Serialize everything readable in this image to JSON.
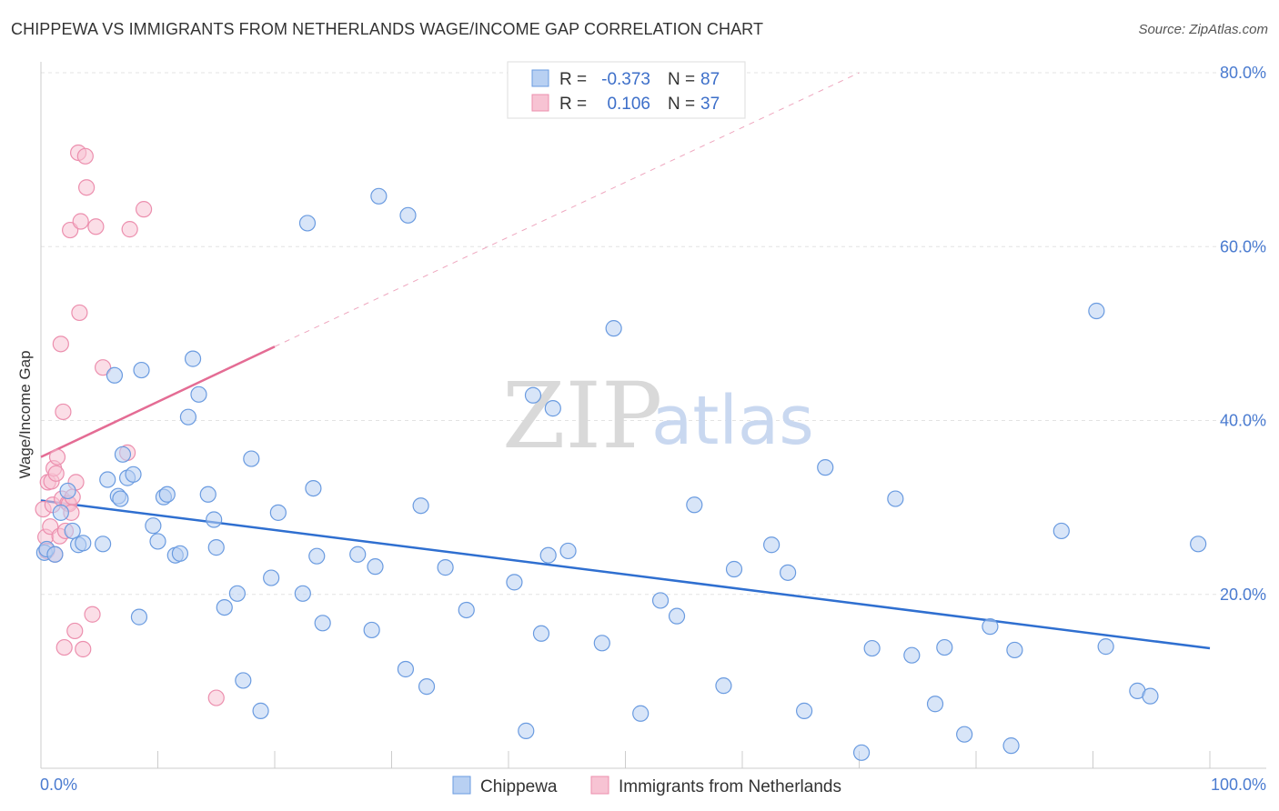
{
  "header": {
    "title": "CHIPPEWA VS IMMIGRANTS FROM NETHERLANDS WAGE/INCOME GAP CORRELATION CHART",
    "source": "Source: ZipAtlas.com"
  },
  "watermark": {
    "zip": "ZIP",
    "atlas": "atlas"
  },
  "legend_top": {
    "rows": [
      {
        "r_label": "R =",
        "r_value": "-0.373",
        "n_label": "N =",
        "n_value": "87"
      },
      {
        "r_label": "R =",
        "r_value": "0.106",
        "n_label": "N =",
        "n_value": "37"
      }
    ]
  },
  "legend_bottom": {
    "items": [
      "Chippewa",
      "Immigrants from Netherlands"
    ]
  },
  "colors": {
    "blue_fill": "#b8d0f2",
    "blue_stroke": "#6a9be0",
    "blue_line": "#2f6fd0",
    "pink_fill": "#f7c3d3",
    "pink_stroke": "#ec8fae",
    "pink_line": "#e46c94",
    "grid": "#e3e3e3",
    "axis": "#cccccc",
    "tick_text": "#4a7bd0"
  },
  "chart_data": {
    "type": "scatter",
    "title": "CHIPPEWA VS IMMIGRANTS FROM NETHERLANDS WAGE/INCOME GAP CORRELATION CHART",
    "xlabel": "",
    "ylabel": "Wage/Income Gap",
    "xlim": [
      0,
      100
    ],
    "ylim": [
      0,
      80
    ],
    "x_tick_labels": [
      "0.0%",
      "100.0%"
    ],
    "y_ticks": [
      20,
      40,
      60,
      80
    ],
    "y_tick_labels": [
      "20.0%",
      "40.0%",
      "60.0%",
      "80.0%"
    ],
    "grid": true,
    "legend_placement": "top-center",
    "series": [
      {
        "name": "Chippewa",
        "r": -0.373,
        "n": 87,
        "trend": {
          "x": [
            0,
            100
          ],
          "y": [
            30.8,
            13.8
          ],
          "extended": false
        },
        "points": [
          [
            0.3,
            24.8
          ],
          [
            0.5,
            25.2
          ],
          [
            1.2,
            24.6
          ],
          [
            1.7,
            29.4
          ],
          [
            2.3,
            31.9
          ],
          [
            2.7,
            27.3
          ],
          [
            3.2,
            25.7
          ],
          [
            3.6,
            25.9
          ],
          [
            5.3,
            25.8
          ],
          [
            5.7,
            33.2
          ],
          [
            6.3,
            45.2
          ],
          [
            6.6,
            31.3
          ],
          [
            6.8,
            31.0
          ],
          [
            7.0,
            36.1
          ],
          [
            7.4,
            33.4
          ],
          [
            7.9,
            33.8
          ],
          [
            8.4,
            17.4
          ],
          [
            8.6,
            45.8
          ],
          [
            9.6,
            27.9
          ],
          [
            10.0,
            26.1
          ],
          [
            10.5,
            31.2
          ],
          [
            10.8,
            31.5
          ],
          [
            11.5,
            24.5
          ],
          [
            11.9,
            24.7
          ],
          [
            12.6,
            40.4
          ],
          [
            13.0,
            47.1
          ],
          [
            13.5,
            43.0
          ],
          [
            14.3,
            31.5
          ],
          [
            14.8,
            28.6
          ],
          [
            15.0,
            25.4
          ],
          [
            15.7,
            18.5
          ],
          [
            16.8,
            20.1
          ],
          [
            17.3,
            10.1
          ],
          [
            18.0,
            35.6
          ],
          [
            18.8,
            6.6
          ],
          [
            19.7,
            21.9
          ],
          [
            20.3,
            29.4
          ],
          [
            22.4,
            20.1
          ],
          [
            22.8,
            62.7
          ],
          [
            23.3,
            32.2
          ],
          [
            23.6,
            24.4
          ],
          [
            24.1,
            16.7
          ],
          [
            27.1,
            24.6
          ],
          [
            28.3,
            15.9
          ],
          [
            28.6,
            23.2
          ],
          [
            28.9,
            65.8
          ],
          [
            31.2,
            11.4
          ],
          [
            31.4,
            63.6
          ],
          [
            32.5,
            30.2
          ],
          [
            33.0,
            9.4
          ],
          [
            34.6,
            23.1
          ],
          [
            36.4,
            18.2
          ],
          [
            40.5,
            21.4
          ],
          [
            41.5,
            4.3
          ],
          [
            42.1,
            42.9
          ],
          [
            42.8,
            15.5
          ],
          [
            43.4,
            24.5
          ],
          [
            43.8,
            41.4
          ],
          [
            45.1,
            25.0
          ],
          [
            48.0,
            14.4
          ],
          [
            49.0,
            50.6
          ],
          [
            51.3,
            6.3
          ],
          [
            53.0,
            19.3
          ],
          [
            54.4,
            17.5
          ],
          [
            55.9,
            30.3
          ],
          [
            58.4,
            9.5
          ],
          [
            59.3,
            22.9
          ],
          [
            62.5,
            25.7
          ],
          [
            63.9,
            22.5
          ],
          [
            65.3,
            6.6
          ],
          [
            67.1,
            34.6
          ],
          [
            70.2,
            1.8
          ],
          [
            71.1,
            13.8
          ],
          [
            73.1,
            31.0
          ],
          [
            74.5,
            13.0
          ],
          [
            76.5,
            7.4
          ],
          [
            77.3,
            13.9
          ],
          [
            79.0,
            3.9
          ],
          [
            81.2,
            16.3
          ],
          [
            83.0,
            2.6
          ],
          [
            83.3,
            13.6
          ],
          [
            87.3,
            27.3
          ],
          [
            90.3,
            52.6
          ],
          [
            91.1,
            14.0
          ],
          [
            93.8,
            8.9
          ],
          [
            94.9,
            8.3
          ],
          [
            99.0,
            25.8
          ]
        ]
      },
      {
        "name": "Immigrants from Netherlands",
        "r": 0.106,
        "n": 37,
        "trend": {
          "x": [
            0,
            20
          ],
          "y": [
            35.8,
            48.5
          ],
          "extended_to": [
            70,
            80
          ]
        },
        "points": [
          [
            0.2,
            29.8
          ],
          [
            0.4,
            26.6
          ],
          [
            0.5,
            25.0
          ],
          [
            0.6,
            32.9
          ],
          [
            0.8,
            27.8
          ],
          [
            0.9,
            33.0
          ],
          [
            1.0,
            30.3
          ],
          [
            1.1,
            34.5
          ],
          [
            1.2,
            24.6
          ],
          [
            1.3,
            33.9
          ],
          [
            1.4,
            35.8
          ],
          [
            1.6,
            26.7
          ],
          [
            1.7,
            48.8
          ],
          [
            1.8,
            31.0
          ],
          [
            1.9,
            41.0
          ],
          [
            2.0,
            13.9
          ],
          [
            2.1,
            27.3
          ],
          [
            2.3,
            30.5
          ],
          [
            2.4,
            30.4
          ],
          [
            2.5,
            61.9
          ],
          [
            2.6,
            29.4
          ],
          [
            2.7,
            31.2
          ],
          [
            2.9,
            15.8
          ],
          [
            3.0,
            32.9
          ],
          [
            3.2,
            70.8
          ],
          [
            3.3,
            52.4
          ],
          [
            3.4,
            62.9
          ],
          [
            3.6,
            13.7
          ],
          [
            3.8,
            70.4
          ],
          [
            3.9,
            66.8
          ],
          [
            4.4,
            17.7
          ],
          [
            4.7,
            62.3
          ],
          [
            5.3,
            46.1
          ],
          [
            7.4,
            36.3
          ],
          [
            7.6,
            62.0
          ],
          [
            8.8,
            64.3
          ],
          [
            15.0,
            8.1
          ]
        ]
      }
    ]
  }
}
